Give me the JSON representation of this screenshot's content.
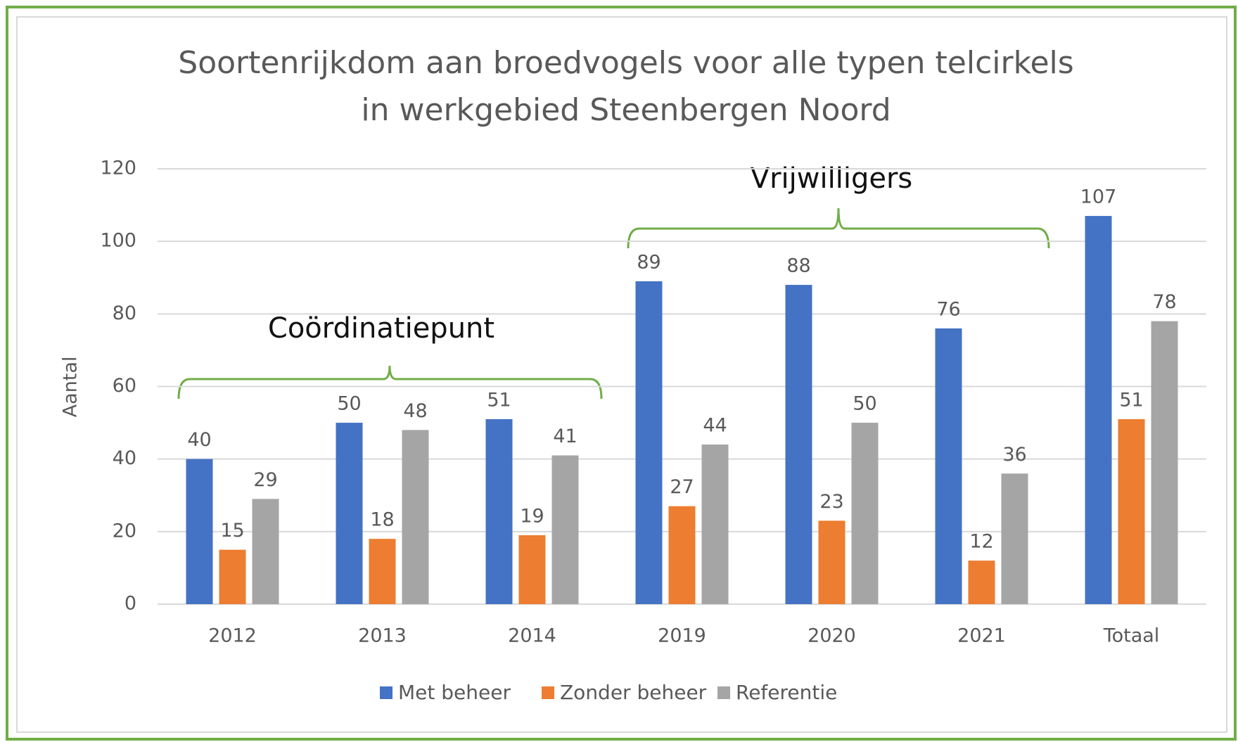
{
  "chart_data": {
    "type": "bar",
    "title": [
      "Soortenrijkdom aan broedvogels voor alle typen telcirkels",
      "in werkgebied Steenbergen Noord"
    ],
    "y_label": "Aantal",
    "categories": [
      "2012",
      "2013",
      "2014",
      "2019",
      "2020",
      "2021",
      "Totaal"
    ],
    "series": [
      {
        "name": "Met beheer",
        "color": "#4472c4",
        "values": [
          40,
          50,
          51,
          89,
          88,
          76,
          107
        ]
      },
      {
        "name": "Zonder beheer",
        "color": "#ed7d31",
        "values": [
          15,
          18,
          19,
          27,
          23,
          12,
          51
        ]
      },
      {
        "name": "Referentie",
        "color": "#a5a5a5",
        "values": [
          29,
          48,
          41,
          44,
          50,
          36,
          78
        ]
      }
    ],
    "ylim": [
      0,
      120
    ],
    "yticks": [
      0,
      20,
      40,
      60,
      80,
      100,
      120
    ],
    "grid": true,
    "legend": "bottom",
    "annotations": [
      "Coördinatiepunt",
      "Vrijwilligers"
    ]
  }
}
